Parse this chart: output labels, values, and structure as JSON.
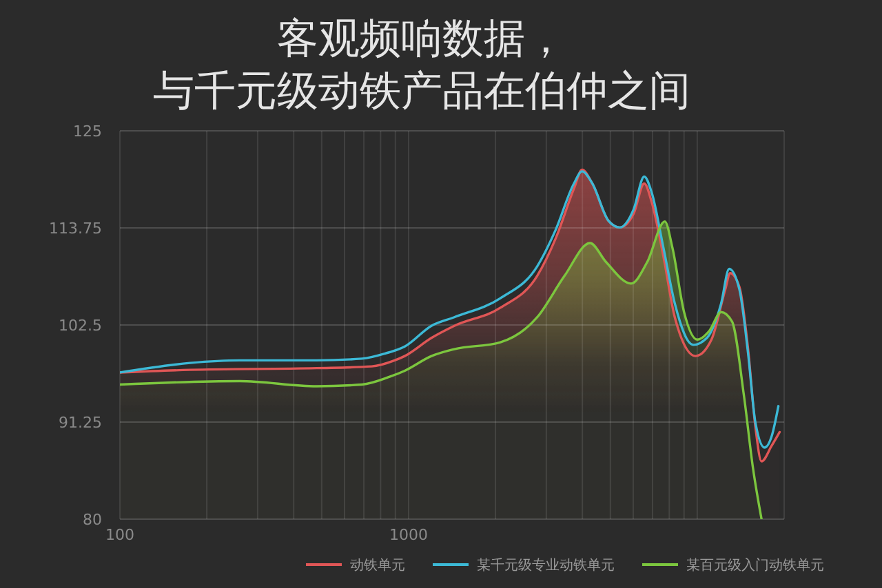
{
  "chart_data": {
    "type": "line",
    "title": "客观频响数据，与千元级动铁产品在伯仲之间",
    "log": "x",
    "xlim": [
      100,
      20000
    ],
    "ylim": [
      80,
      125
    ],
    "xticks": [
      100,
      {
        "value": 200,
        "label": null
      },
      {
        "value": 300,
        "label": null
      },
      {
        "value": 400,
        "label": null
      },
      {
        "value": 500,
        "label": null
      },
      {
        "value": 600,
        "label": null
      },
      {
        "value": 700,
        "label": null
      },
      {
        "value": 800,
        "label": null
      },
      {
        "value": 900,
        "label": null
      },
      1000,
      {
        "value": 2000,
        "label": null
      },
      {
        "value": 3000,
        "label": null
      },
      {
        "value": 4000,
        "label": null
      },
      {
        "value": 5000,
        "label": null
      },
      {
        "value": 6000,
        "label": null
      },
      {
        "value": 7000,
        "label": null
      },
      {
        "value": 8000,
        "label": null
      },
      {
        "value": 9000,
        "label": null
      },
      {
        "value": 10000,
        "label": null
      },
      {
        "value": 20000,
        "label": null
      }
    ],
    "yticks": [
      80,
      91.25,
      102.5,
      113.75,
      125
    ],
    "grid": true,
    "legend": "bottom",
    "series": [
      {
        "name": "动铁单元",
        "color": "#e05656",
        "type": "area",
        "x": [
          100,
          175,
          480,
          745,
          895,
          970,
          1200,
          1440,
          2080,
          2790,
          3230,
          3740,
          3990,
          4330,
          4920,
          5390,
          6020,
          6550,
          6960,
          7640,
          8360,
          9860,
          11200,
          12500,
          13000,
          14000,
          15000,
          15900,
          16700,
          18100,
          19300
        ],
        "values": [
          97.0,
          97.3,
          97.5,
          97.7,
          98.4,
          98.9,
          101.0,
          102.4,
          104.5,
          108.2,
          112.5,
          118.3,
          120.5,
          118.9,
          114.6,
          113.8,
          115.4,
          118.9,
          116.7,
          110.4,
          103.4,
          98.9,
          100.8,
          106.6,
          108.5,
          106.9,
          99.7,
          90.7,
          86.7,
          88.5,
          90.1
        ]
      },
      {
        "name": "某千元级专业动铁单元",
        "color": "#3cb9d6",
        "type": "line",
        "x": [
          100,
          175,
          260,
          480,
          690,
          830,
          970,
          1200,
          1440,
          2080,
          2790,
          3230,
          3740,
          3990,
          4330,
          4920,
          5390,
          6020,
          6550,
          6960,
          7640,
          8360,
          9680,
          10800,
          12100,
          12900,
          14000,
          15000,
          15900,
          17100,
          18100,
          19100
        ],
        "values": [
          97.0,
          98.1,
          98.4,
          98.4,
          98.6,
          99.2,
          100.0,
          102.4,
          103.4,
          105.6,
          109.3,
          113.5,
          118.9,
          120.3,
          118.9,
          114.6,
          113.8,
          115.9,
          119.7,
          117.8,
          111.4,
          105.0,
          100.2,
          101.0,
          105.0,
          109.0,
          106.6,
          99.2,
          91.2,
          88.3,
          89.6,
          93.1
        ]
      },
      {
        "name": "某百元级入门动铁单元",
        "color": "#7cc63e",
        "type": "area",
        "x": [
          100,
          260,
          480,
          690,
          860,
          970,
          1200,
          1440,
          2080,
          2790,
          3470,
          4250,
          4830,
          5900,
          6710,
          7720,
          8210,
          9000,
          10000,
          11000,
          12100,
          13200,
          14500,
          15600,
          16700
        ],
        "values": [
          95.6,
          96.0,
          95.4,
          95.6,
          96.5,
          97.2,
          98.9,
          99.7,
          100.5,
          103.4,
          108.2,
          112.0,
          109.8,
          107.3,
          109.8,
          114.5,
          111.4,
          104.0,
          100.8,
          101.8,
          104.0,
          102.9,
          94.4,
          85.9,
          80.0
        ]
      }
    ]
  }
}
